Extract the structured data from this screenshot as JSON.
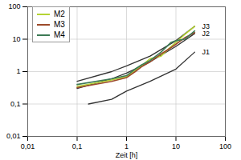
{
  "chart_data": {
    "type": "line",
    "log": true,
    "grid": true,
    "legend": "top-left",
    "x_label": "Zeit [h]",
    "xlim": [
      0.01,
      100
    ],
    "xticks": [
      {
        "value": 0.01,
        "label": "0,01"
      },
      {
        "value": 0.1,
        "label": "0,1"
      },
      1,
      10,
      100
    ],
    "ylim": [
      0.01,
      100
    ],
    "yticks": [
      {
        "value": 0.01,
        "label": "0,01"
      },
      {
        "value": 0.1,
        "label": "0,1"
      },
      1,
      10,
      100
    ],
    "series": [
      {
        "name": "M2",
        "color": "#b5d334",
        "x": [
          0.1,
          0.5,
          1,
          1.5,
          2,
          3,
          5,
          8,
          10,
          15,
          24
        ],
        "values": [
          0.35,
          0.55,
          0.7,
          1.1,
          1.5,
          2.5,
          3,
          6,
          8,
          14,
          25
        ]
      },
      {
        "name": "M3",
        "color": "#9c4a2a",
        "x": [
          0.1,
          0.5,
          1,
          1.5,
          2,
          3,
          5,
          8,
          10,
          15,
          24
        ],
        "values": [
          0.32,
          0.5,
          0.65,
          1,
          1.4,
          2,
          3.5,
          5.5,
          7,
          11,
          16
        ]
      },
      {
        "name": "M4",
        "color": "#3d7a55",
        "x": [
          0.1,
          0.5,
          1,
          1.5,
          2,
          3,
          5,
          8,
          10,
          15,
          24
        ],
        "values": [
          0.4,
          0.6,
          0.75,
          1.2,
          1.6,
          2.2,
          4,
          8,
          9,
          10,
          18
        ]
      }
    ],
    "reference_lines": [
      {
        "name": "J3",
        "color": "#333333",
        "x": [
          0.1,
          0.5,
          1,
          3,
          10,
          24
        ],
        "values": [
          0.5,
          1,
          1.5,
          3,
          9,
          25
        ]
      },
      {
        "name": "J2",
        "color": "#333333",
        "x": [
          0.1,
          0.5,
          1,
          3,
          10,
          24
        ],
        "values": [
          0.3,
          0.6,
          0.9,
          2,
          6,
          15
        ]
      },
      {
        "name": "J1",
        "color": "#333333",
        "x": [
          0.17,
          0.5,
          1,
          3,
          10,
          24
        ],
        "values": [
          0.1,
          0.14,
          0.25,
          0.5,
          1.2,
          4
        ]
      }
    ]
  }
}
